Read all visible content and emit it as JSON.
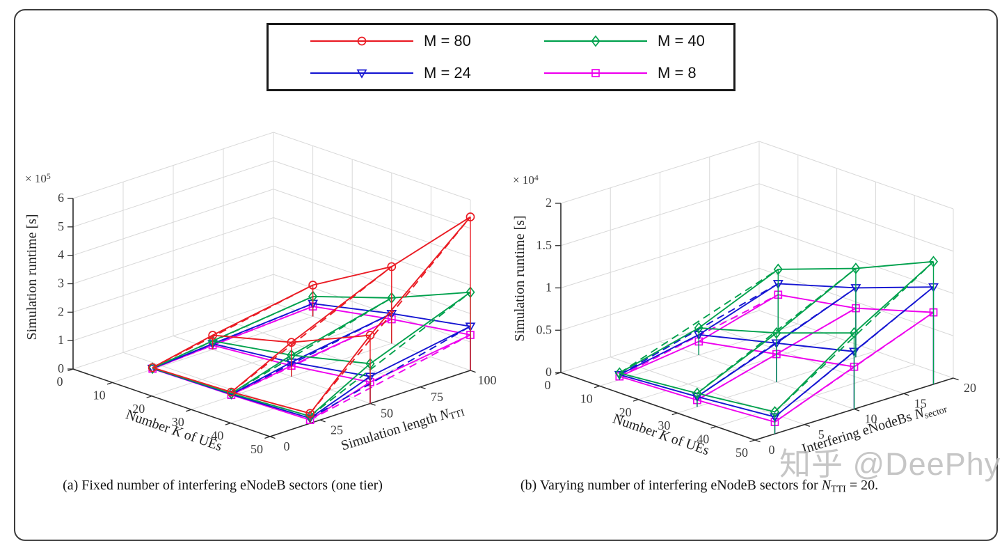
{
  "figure": {
    "legend": {
      "entries": [
        {
          "label": "M = 80",
          "color": "#ea1c24",
          "marker": "circle"
        },
        {
          "label": "M = 40",
          "color": "#00a14d",
          "marker": "diamond"
        },
        {
          "label": "M = 24",
          "color": "#1616d2",
          "marker": "triangle-down"
        },
        {
          "label": "M = 8",
          "color": "#ee00ee",
          "marker": "square"
        }
      ]
    },
    "captions": {
      "a": "(a) Fixed number of interfering eNodeB sectors (one tier)",
      "b_prefix": "(b) Varying number of interfering eNodeB sectors for ",
      "b_var": "N",
      "b_sub": "TTI",
      "b_suffix": " = 20."
    },
    "watermark": "知乎 @DeePhy"
  },
  "chart_data": [
    {
      "type": "line",
      "subtype": "3d-mesh",
      "caption": "(a) Fixed number of interfering eNodeB sectors (one tier)",
      "zlabel": "Simulation runtime [s]",
      "z_exponent_parts": [
        {
          "t": "× 10"
        },
        {
          "t": "5",
          "sup": true
        }
      ],
      "xlabel_parts": [
        {
          "t": "Number "
        },
        {
          "t": "K",
          "i": true
        },
        {
          "t": " of UEs"
        }
      ],
      "ylabel_parts": [
        {
          "t": "Simulation length "
        },
        {
          "t": "N",
          "i": true
        },
        {
          "t": "TTI",
          "sub": true
        }
      ],
      "xticks": [
        "0",
        "10",
        "20",
        "30",
        "40",
        "50"
      ],
      "yticks": [
        "0",
        "25",
        "50",
        "75",
        "100"
      ],
      "zticks": [
        "0",
        "1",
        "2",
        "3",
        "4",
        "5",
        "6"
      ],
      "xlim": [
        0,
        50
      ],
      "ylim": [
        0,
        100
      ],
      "zlim": [
        0,
        6
      ],
      "grid": true,
      "legend_position": "top-center",
      "x_values": [
        10,
        30,
        50
      ],
      "y_values": [
        20,
        50,
        100
      ],
      "z_unit": "1e5 seconds",
      "series": [
        {
          "name": "M = 8",
          "color": "#ee00ee",
          "marker": "square",
          "values": [
            [
              0.02,
              0.15,
              0.35
            ],
            [
              0.05,
              0.38,
              0.85
            ],
            [
              0.12,
              0.75,
              1.25
            ]
          ]
        },
        {
          "name": "M = 24",
          "color": "#1616d2",
          "marker": "triangle-down",
          "values": [
            [
              0.03,
              0.2,
              0.45
            ],
            [
              0.07,
              0.5,
              1.05
            ],
            [
              0.18,
              0.95,
              1.55
            ]
          ]
        },
        {
          "name": "M = 40",
          "color": "#00a14d",
          "marker": "diamond",
          "values": [
            [
              0.04,
              0.3,
              0.7
            ],
            [
              0.1,
              0.75,
              1.6
            ],
            [
              0.25,
              1.4,
              2.75
            ]
          ]
        },
        {
          "name": "M = 80",
          "color": "#ea1c24",
          "marker": "circle",
          "values": [
            [
              0.06,
              0.5,
              1.1
            ],
            [
              0.15,
              1.2,
              2.7
            ],
            [
              0.35,
              2.4,
              5.4
            ]
          ]
        }
      ]
    },
    {
      "type": "line",
      "subtype": "3d-mesh",
      "caption": "(b) Varying number of interfering eNodeB sectors for N_TTI = 20.",
      "zlabel": "Simulation runtime [s]",
      "z_exponent_parts": [
        {
          "t": "× 10"
        },
        {
          "t": "4",
          "sup": true
        }
      ],
      "xlabel_parts": [
        {
          "t": "Number "
        },
        {
          "t": "K",
          "i": true
        },
        {
          "t": " of UEs"
        }
      ],
      "ylabel_parts": [
        {
          "t": "Interfering eNodeBs "
        },
        {
          "t": "N",
          "i": true
        },
        {
          "t": "sector",
          "sub": true
        }
      ],
      "xticks": [
        "0",
        "10",
        "20",
        "30",
        "40",
        "50"
      ],
      "yticks": [
        "0",
        "5",
        "10",
        "15",
        "20"
      ],
      "zticks": [
        "0",
        "0.5",
        "1",
        "1.5",
        "2"
      ],
      "xlim": [
        0,
        50
      ],
      "ylim": [
        0,
        20
      ],
      "zlim": [
        0,
        2
      ],
      "grid": true,
      "legend_position": "top-center",
      "x_values": [
        10,
        30,
        50
      ],
      "y_values": [
        2,
        10,
        18
      ],
      "z_unit": "1e4 seconds",
      "series": [
        {
          "name": "M = 8",
          "color": "#ee00ee",
          "marker": "square",
          "values": [
            [
              0.04,
              0.16,
              0.42
            ],
            [
              0.08,
              0.33,
              0.58
            ],
            [
              0.14,
              0.5,
              0.85
            ]
          ]
        },
        {
          "name": "M = 24",
          "color": "#1616d2",
          "marker": "triangle-down",
          "values": [
            [
              0.06,
              0.24,
              0.55
            ],
            [
              0.12,
              0.46,
              0.82
            ],
            [
              0.2,
              0.68,
              1.15
            ]
          ]
        },
        {
          "name": "M = 40",
          "color": "#00a14d",
          "marker": "diamond",
          "values": [
            [
              0.08,
              0.32,
              0.72
            ],
            [
              0.16,
              0.58,
              1.05
            ],
            [
              0.26,
              0.9,
              1.45
            ]
          ]
        }
      ]
    }
  ]
}
